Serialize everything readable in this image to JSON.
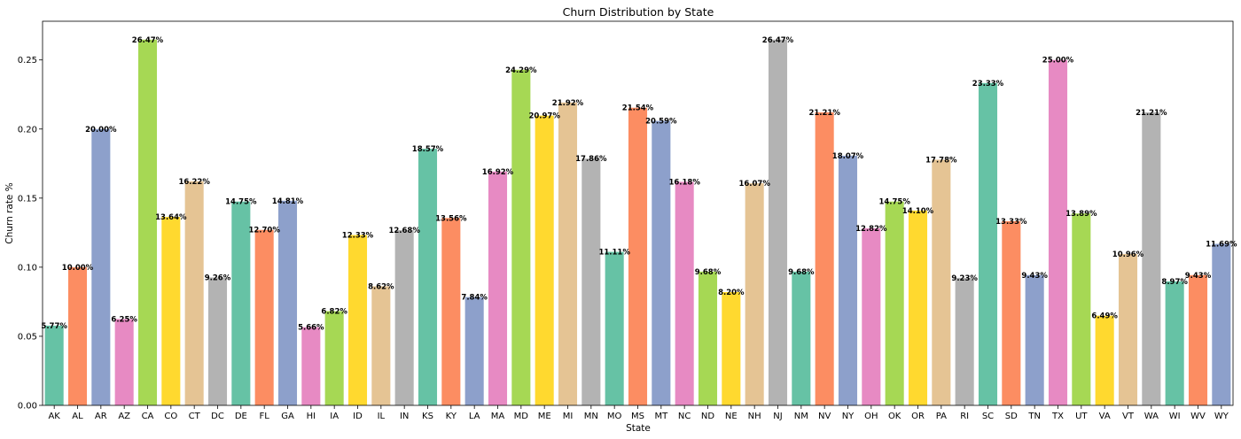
{
  "chart_data": {
    "type": "bar",
    "title": "Churn Distribution by State",
    "xlabel": "State",
    "ylabel": "Churn rate %",
    "ylim": [
      0,
      0.278
    ],
    "yticks": [
      "0.00",
      "0.05",
      "0.10",
      "0.15",
      "0.20",
      "0.25"
    ],
    "ytick_values": [
      0,
      0.05,
      0.1,
      0.15,
      0.2,
      0.25
    ],
    "grid": false,
    "categories": [
      "AK",
      "AL",
      "AR",
      "AZ",
      "CA",
      "CO",
      "CT",
      "DC",
      "DE",
      "FL",
      "GA",
      "HI",
      "IA",
      "ID",
      "IL",
      "IN",
      "KS",
      "KY",
      "LA",
      "MA",
      "MD",
      "ME",
      "MI",
      "MN",
      "MO",
      "MS",
      "MT",
      "NC",
      "ND",
      "NE",
      "NH",
      "NJ",
      "NM",
      "NV",
      "NY",
      "OH",
      "OK",
      "OR",
      "PA",
      "RI",
      "SC",
      "SD",
      "TN",
      "TX",
      "UT",
      "VA",
      "VT",
      "WA",
      "WI",
      "WV",
      "WY"
    ],
    "values": [
      0.0577,
      0.1,
      0.2,
      0.0625,
      0.2647,
      0.1364,
      0.1622,
      0.0926,
      0.1475,
      0.127,
      0.1481,
      0.0566,
      0.0682,
      0.1233,
      0.0862,
      0.1268,
      0.1857,
      0.1356,
      0.0784,
      0.1692,
      0.2429,
      0.2097,
      0.2192,
      0.1786,
      0.1111,
      0.2154,
      0.2059,
      0.1618,
      0.0968,
      0.082,
      0.1607,
      0.2647,
      0.0968,
      0.2121,
      0.1807,
      0.1282,
      0.1475,
      0.141,
      0.1778,
      0.0923,
      0.2333,
      0.1333,
      0.0943,
      0.25,
      0.1389,
      0.0649,
      0.1096,
      0.2121,
      0.0897,
      0.0943,
      0.1169
    ],
    "data_labels": [
      "5.77%",
      "10.00%",
      "20.00%",
      "6.25%",
      "26.47%",
      "13.64%",
      "16.22%",
      "9.26%",
      "14.75%",
      "12.70%",
      "14.81%",
      "5.66%",
      "6.82%",
      "12.33%",
      "8.62%",
      "12.68%",
      "18.57%",
      "13.56%",
      "7.84%",
      "16.92%",
      "24.29%",
      "20.97%",
      "21.92%",
      "17.86%",
      "11.11%",
      "21.54%",
      "20.59%",
      "16.18%",
      "9.68%",
      "8.20%",
      "16.07%",
      "26.47%",
      "9.68%",
      "21.21%",
      "18.07%",
      "12.82%",
      "14.75%",
      "14.10%",
      "17.78%",
      "9.23%",
      "23.33%",
      "13.33%",
      "9.43%",
      "25.00%",
      "13.89%",
      "6.49%",
      "10.96%",
      "21.21%",
      "8.97%",
      "9.43%",
      "11.69%"
    ],
    "palette": [
      "#66c2a5",
      "#fc8d62",
      "#8da0cb",
      "#e78ac3",
      "#a6d854",
      "#ffd92f",
      "#e5c494",
      "#b3b3b3"
    ]
  }
}
